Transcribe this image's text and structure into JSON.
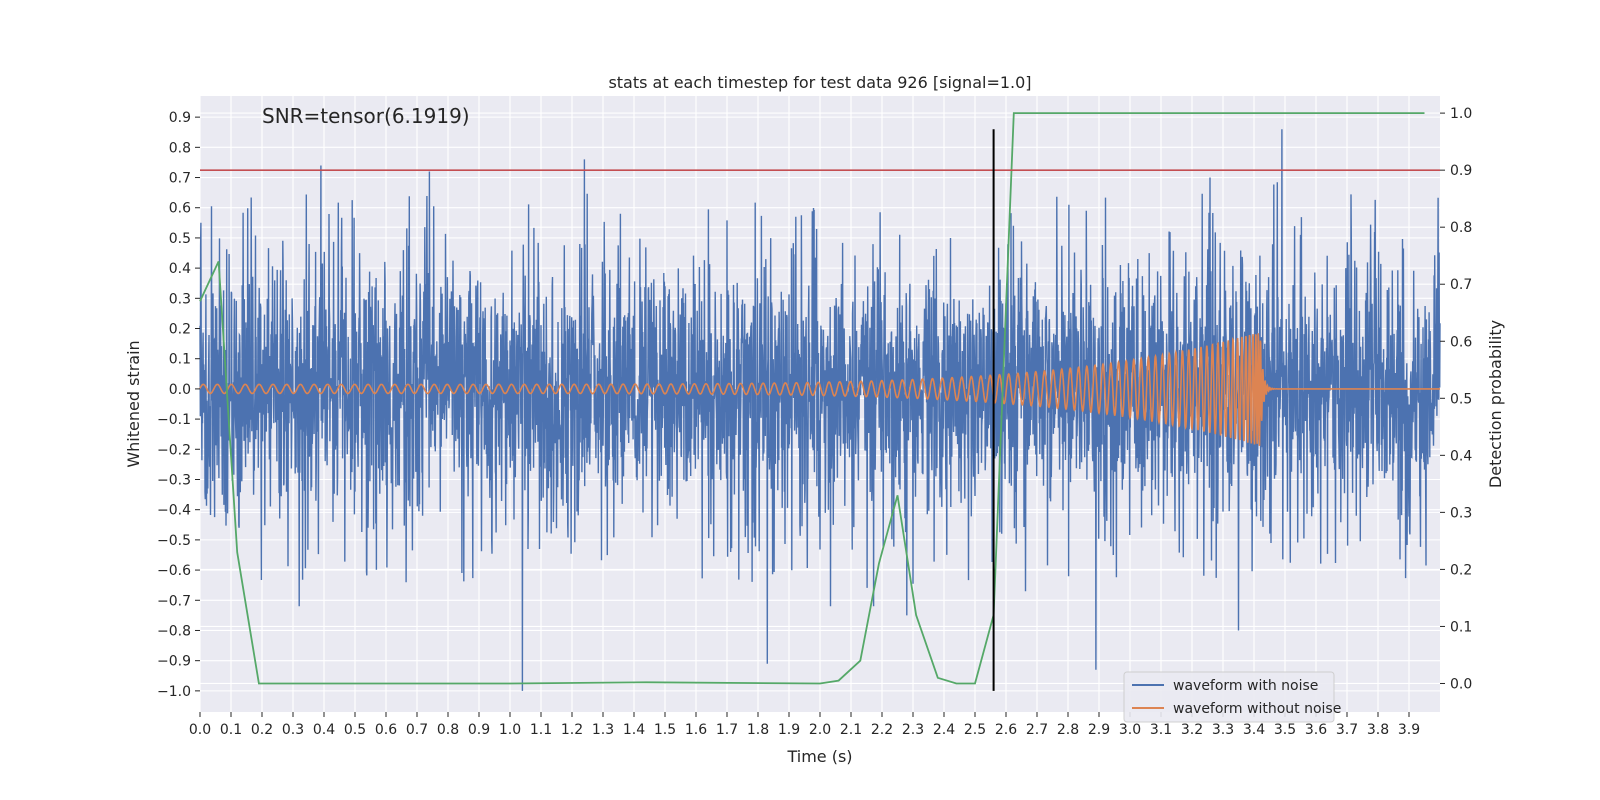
{
  "chart_data": {
    "type": "line",
    "title": "stats at each timestep for test data 926 [signal=1.0]",
    "xlabel": "Time (s)",
    "ylabel": "Whitened strain",
    "y2label": "Detection probability",
    "annotation": "SNR=tensor(6.1919)",
    "xlim": [
      0.0,
      4.0
    ],
    "ylim": [
      -1.07,
      0.97
    ],
    "y2lim": [
      -0.05,
      1.03
    ],
    "x_ticks": [
      "0.0",
      "0.1",
      "0.2",
      "0.3",
      "0.4",
      "0.5",
      "0.6",
      "0.7",
      "0.8",
      "0.9",
      "1.0",
      "1.1",
      "1.2",
      "1.3",
      "1.4",
      "1.5",
      "1.6",
      "1.7",
      "1.8",
      "1.9",
      "2.0",
      "2.1",
      "2.2",
      "2.3",
      "2.4",
      "2.5",
      "2.6",
      "2.7",
      "2.8",
      "2.9",
      "3.0",
      "3.1",
      "3.2",
      "3.3",
      "3.4",
      "3.5",
      "3.6",
      "3.7",
      "3.8",
      "3.9"
    ],
    "y_ticks": [
      "0.9",
      "0.8",
      "0.7",
      "0.6",
      "0.5",
      "0.4",
      "0.3",
      "0.2",
      "0.1",
      "0.0",
      "−0.1",
      "−0.2",
      "−0.3",
      "−0.4",
      "−0.5",
      "−0.6",
      "−0.7",
      "−0.8",
      "−0.9",
      "−1.0"
    ],
    "y2_ticks": [
      "1.0",
      "0.9",
      "0.8",
      "0.7",
      "0.6",
      "0.5",
      "0.4",
      "0.3",
      "0.2",
      "0.1",
      "0.0"
    ],
    "grid": true,
    "legend_position": "lower-right",
    "threshold": {
      "axis": "y2",
      "value": 0.9,
      "color": "#c44e52"
    },
    "vertical_marker": {
      "x": 2.56,
      "y_from": -1.0,
      "y_to": 0.86,
      "color": "#000000"
    },
    "series": [
      {
        "name": "waveform with noise",
        "color": "#4c72b0",
        "axis": "y",
        "style": "noise",
        "amplitude_hint": 0.45,
        "peaks": [
          [
            0.39,
            0.74
          ],
          [
            0.74,
            0.72
          ],
          [
            1.24,
            0.76
          ],
          [
            1.04,
            -1.0
          ],
          [
            1.83,
            -0.91
          ],
          [
            2.28,
            -0.75
          ],
          [
            3.49,
            0.86
          ],
          [
            3.35,
            -0.8
          ],
          [
            2.89,
            -0.93
          ]
        ]
      },
      {
        "name": "waveform without noise",
        "color": "#dd8452",
        "axis": "y",
        "style": "chirp",
        "merger_time": 3.42,
        "start_amplitude": 0.015,
        "peak_amplitude": 0.19,
        "start_freq": 22,
        "end_freq": 90
      },
      {
        "name": "",
        "color": "#55a868",
        "axis": "y2",
        "style": "line",
        "x": [
          0.0,
          0.06,
          0.12,
          0.19,
          0.25,
          0.5,
          1.0,
          1.44,
          2.0,
          2.06,
          2.13,
          2.19,
          2.25,
          2.31,
          2.38,
          2.44,
          2.5,
          2.56,
          2.625,
          2.7,
          3.0,
          3.5,
          3.95
        ],
        "values": [
          0.67,
          0.74,
          0.23,
          0.0,
          0.0,
          0.0,
          0.0,
          0.002,
          0.0,
          0.005,
          0.04,
          0.21,
          0.33,
          0.12,
          0.01,
          0.0,
          0.0,
          0.12,
          1.0,
          1.0,
          1.0,
          1.0,
          1.0
        ]
      }
    ]
  }
}
